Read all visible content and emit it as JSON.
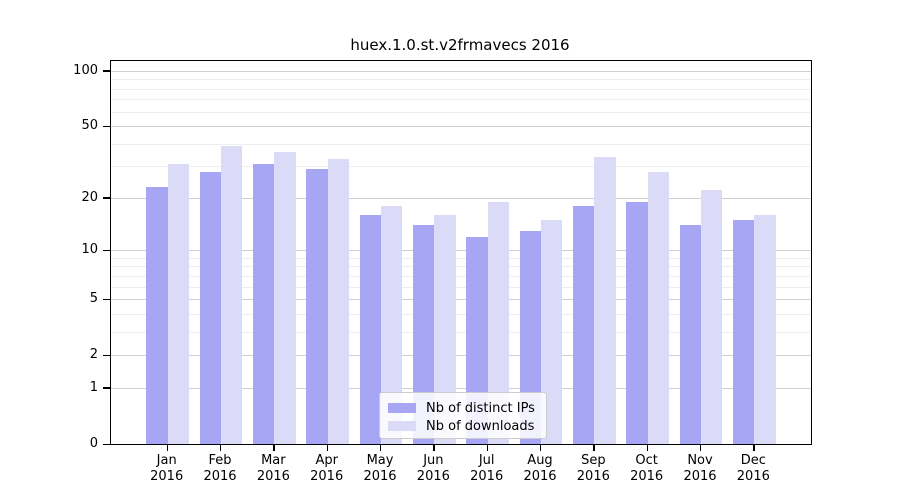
{
  "title": "huex.1.0.st.v2frmavecs 2016",
  "chart_data": {
    "type": "bar",
    "title": "huex.1.0.st.v2frmavecs 2016",
    "categories": [
      "Jan",
      "Feb",
      "Mar",
      "Apr",
      "May",
      "Jun",
      "Jul",
      "Aug",
      "Sep",
      "Oct",
      "Nov",
      "Dec"
    ],
    "year_label": "2016",
    "series": [
      {
        "name": "Nb of distinct IPs",
        "color": "#a6a6f5",
        "values": [
          23,
          28,
          31,
          29,
          16,
          14,
          12,
          13,
          18,
          19,
          14,
          15
        ]
      },
      {
        "name": "Nb of downloads",
        "color": "#dbdbf8",
        "values": [
          31,
          39,
          36,
          33,
          18,
          16,
          19,
          15,
          34,
          28,
          22,
          16
        ]
      }
    ],
    "y_axis": {
      "scale": "log1p",
      "ticks": [
        0,
        1,
        2,
        5,
        10,
        20,
        50,
        100
      ],
      "minor_ticks": [
        3,
        4,
        6,
        7,
        8,
        9,
        30,
        40,
        60,
        70,
        80,
        90
      ],
      "top": 113
    },
    "xlabel": "",
    "ylabel": "",
    "grid": true,
    "legend_position": "lower center"
  },
  "colors": {
    "major_grid": "#cfcfcf",
    "minor_grid": "#ededed",
    "axis": "#000000",
    "background": "#ffffff"
  }
}
